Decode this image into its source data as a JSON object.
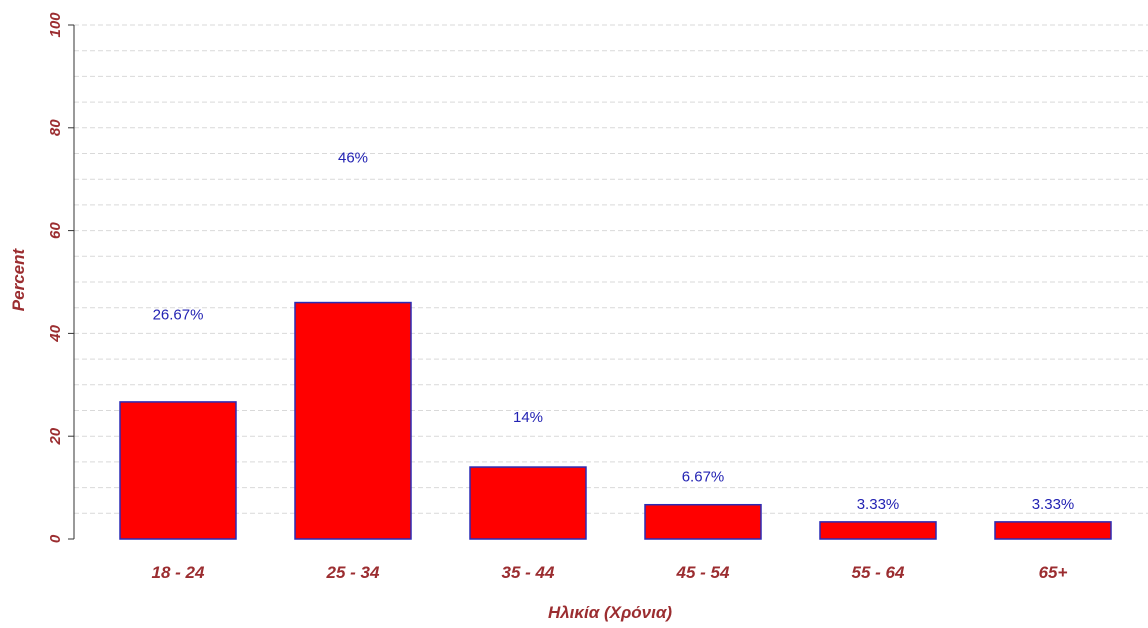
{
  "chart_data": {
    "type": "bar",
    "categories": [
      "18 - 24",
      "25 - 34",
      "35 - 44",
      "45 - 54",
      "55 - 64",
      "65+"
    ],
    "values": [
      26.67,
      46,
      14,
      6.67,
      3.33,
      3.33
    ],
    "data_labels": [
      "26.67%",
      "46%",
      "14%",
      "6.67%",
      "3.33%",
      "3.33%"
    ],
    "title": "",
    "xlabel": "Ηλικία (Χρόνια)",
    "ylabel": "Percent",
    "ylim": [
      0,
      100
    ],
    "yticks": [
      0,
      20,
      40,
      60,
      80,
      100
    ],
    "grid": "horizontal dashed",
    "colors": {
      "bar_fill": "#ff0000",
      "bar_stroke": "#2b2bb5",
      "label_text": "#2323b3",
      "axis_text": "#9b2d30",
      "grid": "#d9d9d9"
    }
  }
}
